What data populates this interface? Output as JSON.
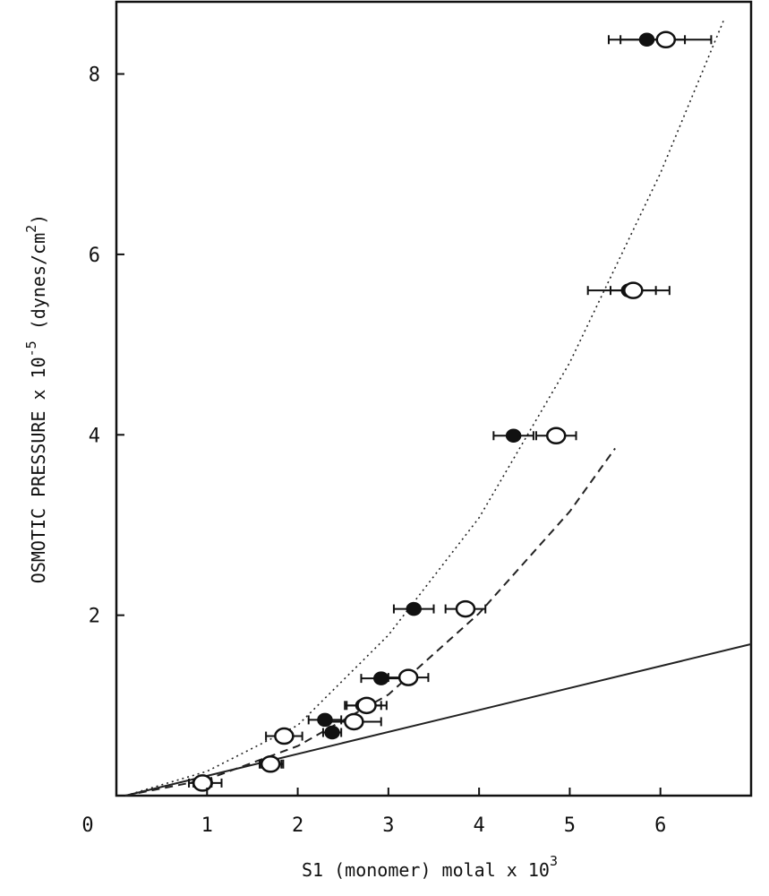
{
  "chart_data": {
    "type": "scatter",
    "title": "",
    "xlabel": "S1 (monomer) molal x 10",
    "xlabel_sup": "3",
    "ylabel_pre": "OSMOTIC PRESSURE x 10",
    "ylabel_sup1": "-5",
    "ylabel_mid": " (dynes/cm",
    "ylabel_sup2": "2",
    "ylabel_post": ")",
    "xlim": [
      0,
      7
    ],
    "ylim": [
      0,
      8.8
    ],
    "x_ticks": [
      0,
      1,
      2,
      3,
      4,
      5,
      6
    ],
    "y_ticks": [
      2,
      4,
      6,
      8
    ],
    "grid": false,
    "series": [
      {
        "marker": "filled-circle",
        "points": [
          {
            "x": 0.98,
            "y": 0.14,
            "xerr": 0.18
          },
          {
            "x": 1.72,
            "y": 0.35,
            "xerr": 0.12
          },
          {
            "x": 2.3,
            "y": 0.84,
            "xerr": 0.18
          },
          {
            "x": 2.38,
            "y": 0.7,
            "xerr": 0.1
          },
          {
            "x": 2.72,
            "y": 1.0,
            "xerr": 0.2
          },
          {
            "x": 2.92,
            "y": 1.3,
            "xerr": 0.22
          },
          {
            "x": 3.28,
            "y": 2.07,
            "xerr": 0.22
          },
          {
            "x": 4.38,
            "y": 3.99,
            "xerr": 0.22
          },
          {
            "x": 5.65,
            "y": 5.6,
            "xerr": 0.45
          },
          {
            "x": 5.85,
            "y": 8.38,
            "xerr": 0.42
          }
        ]
      },
      {
        "marker": "open-circle",
        "points": [
          {
            "x": 0.95,
            "y": 0.14,
            "xerr": 0.1
          },
          {
            "x": 1.7,
            "y": 0.35,
            "xerr": 0.12
          },
          {
            "x": 1.85,
            "y": 0.66,
            "xerr": 0.2
          },
          {
            "x": 2.62,
            "y": 0.82,
            "xerr": 0.3
          },
          {
            "x": 2.76,
            "y": 1.0,
            "xerr": 0.22
          },
          {
            "x": 3.22,
            "y": 1.31,
            "xerr": 0.22
          },
          {
            "x": 3.85,
            "y": 2.07,
            "xerr": 0.22
          },
          {
            "x": 4.85,
            "y": 3.99,
            "xerr": 0.22
          },
          {
            "x": 5.7,
            "y": 5.6,
            "xerr": 0.25
          },
          {
            "x": 6.06,
            "y": 8.38,
            "xerr": 0.5
          }
        ]
      }
    ],
    "curves": [
      {
        "style": "solid",
        "points": [
          [
            0.1,
            0.0
          ],
          [
            7.0,
            1.68
          ]
        ]
      },
      {
        "style": "dashed",
        "points": [
          [
            0.1,
            0.0
          ],
          [
            1.0,
            0.18
          ],
          [
            2.0,
            0.55
          ],
          [
            3.0,
            1.12
          ],
          [
            4.0,
            2.02
          ],
          [
            5.0,
            3.15
          ],
          [
            5.5,
            3.85
          ]
        ]
      },
      {
        "style": "dotted",
        "points": [
          [
            0.1,
            0.0
          ],
          [
            1.0,
            0.27
          ],
          [
            2.0,
            0.78
          ],
          [
            3.0,
            1.78
          ],
          [
            4.0,
            3.08
          ],
          [
            5.0,
            4.8
          ],
          [
            6.0,
            6.9
          ],
          [
            6.7,
            8.6
          ]
        ]
      }
    ]
  }
}
